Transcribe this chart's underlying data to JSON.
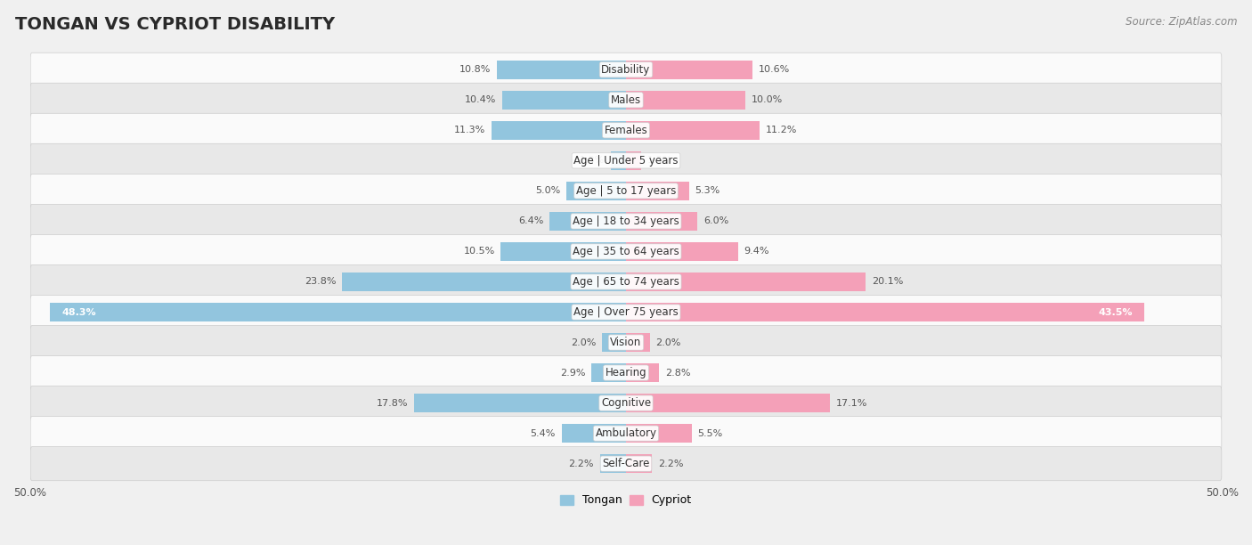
{
  "title": "TONGAN VS CYPRIOT DISABILITY",
  "source": "Source: ZipAtlas.com",
  "categories": [
    "Disability",
    "Males",
    "Females",
    "Age | Under 5 years",
    "Age | 5 to 17 years",
    "Age | 18 to 34 years",
    "Age | 35 to 64 years",
    "Age | 65 to 74 years",
    "Age | Over 75 years",
    "Vision",
    "Hearing",
    "Cognitive",
    "Ambulatory",
    "Self-Care"
  ],
  "tongan": [
    10.8,
    10.4,
    11.3,
    1.3,
    5.0,
    6.4,
    10.5,
    23.8,
    48.3,
    2.0,
    2.9,
    17.8,
    5.4,
    2.2
  ],
  "cypriot": [
    10.6,
    10.0,
    11.2,
    1.3,
    5.3,
    6.0,
    9.4,
    20.1,
    43.5,
    2.0,
    2.8,
    17.1,
    5.5,
    2.2
  ],
  "tongan_color": "#92c5de",
  "cypriot_color": "#f4a0b8",
  "axis_limit": 50.0,
  "bg_color": "#f0f0f0",
  "row_bg_light": "#fafafa",
  "row_bg_dark": "#e8e8e8",
  "title_fontsize": 14,
  "label_fontsize": 8.5,
  "value_fontsize": 8,
  "source_fontsize": 8.5,
  "legend_fontsize": 9
}
